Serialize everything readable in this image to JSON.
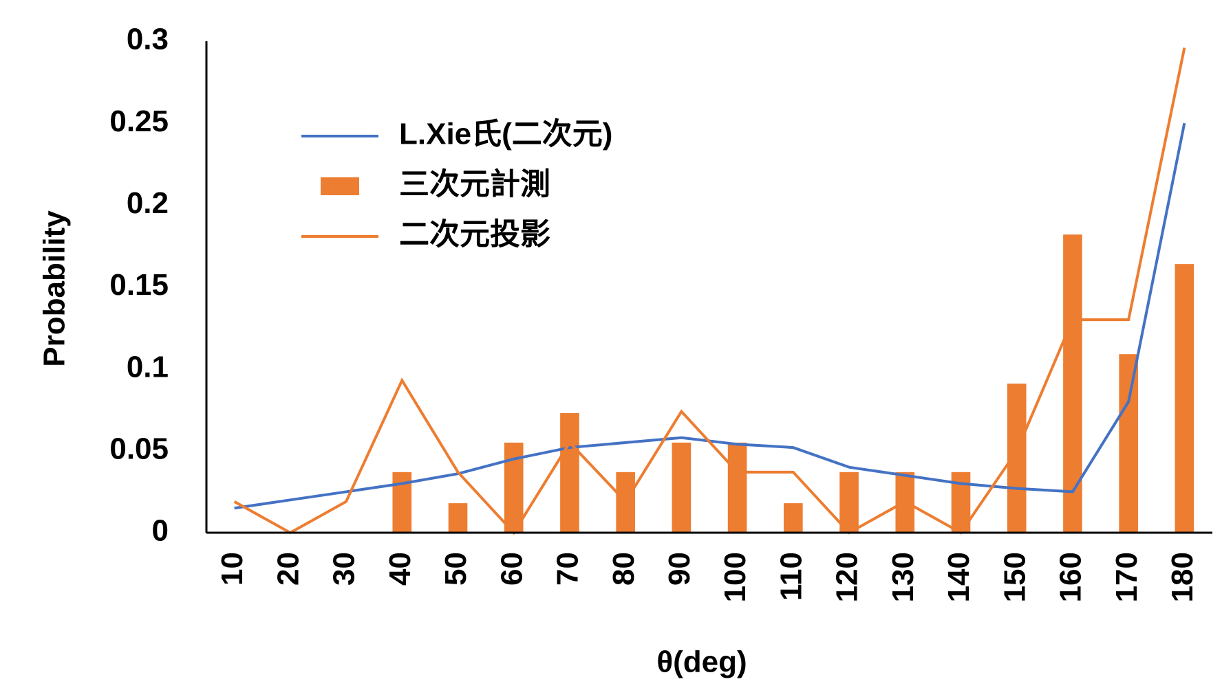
{
  "chart_data": {
    "type": "bar",
    "x_label": "θ(deg)",
    "y_label": "Probability",
    "categories": [
      "10",
      "20",
      "30",
      "40",
      "50",
      "60",
      "70",
      "80",
      "90",
      "100",
      "110",
      "120",
      "130",
      "140",
      "150",
      "160",
      "170",
      "180"
    ],
    "series": [
      {
        "name": "L.Xie氏(二次元)",
        "type": "line",
        "color": "#4472c4",
        "values": [
          0.015,
          0.02,
          0.025,
          0.03,
          0.036,
          0.045,
          0.052,
          0.055,
          0.058,
          0.054,
          0.052,
          0.04,
          0.035,
          0.03,
          0.027,
          0.025,
          0.08,
          0.25
        ]
      },
      {
        "name": "三次元計測",
        "type": "bar",
        "color": "#ed7d31",
        "values": [
          0,
          0,
          0,
          0.037,
          0.018,
          0.055,
          0.073,
          0.037,
          0.055,
          0.055,
          0.018,
          0.037,
          0.037,
          0.037,
          0.091,
          0.182,
          0.109,
          0.164
        ]
      },
      {
        "name": "二次元投影",
        "type": "line",
        "color": "#ed7d31",
        "values": [
          0.019,
          0,
          0.019,
          0.093,
          0.037,
          0,
          0.055,
          0.019,
          0.074,
          0.037,
          0.037,
          0,
          0.019,
          0,
          0.05,
          0.13,
          0.13,
          0.296
        ]
      }
    ],
    "ylim": [
      0,
      0.3
    ],
    "yticks": [
      0,
      0.05,
      0.1,
      0.15,
      0.2,
      0.25,
      0.3
    ],
    "grid": false
  }
}
